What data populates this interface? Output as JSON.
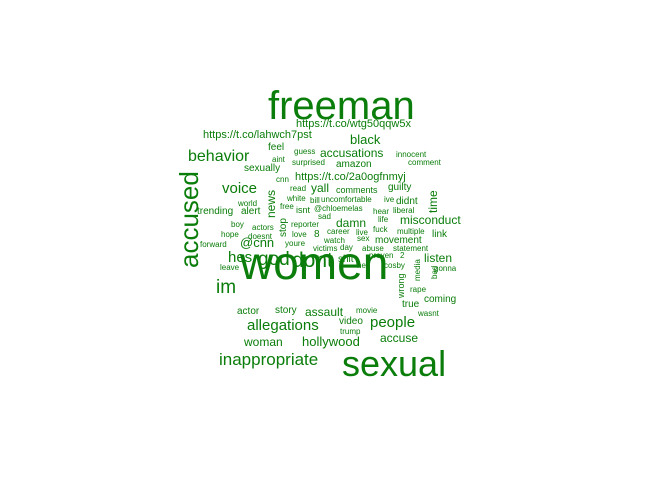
{
  "cloud": {
    "color": "#0a7d0a",
    "words": [
      {
        "text": "women"
      },
      {
        "text": "freeman"
      },
      {
        "text": "sexual"
      },
      {
        "text": "accused"
      },
      {
        "text": "dont"
      },
      {
        "text": "god"
      },
      {
        "text": "im"
      },
      {
        "text": "hes"
      },
      {
        "text": "behavior"
      },
      {
        "text": "inappropriate"
      },
      {
        "text": "allegations"
      },
      {
        "text": "people"
      },
      {
        "text": "voice"
      },
      {
        "text": "black"
      },
      {
        "text": "accusations"
      },
      {
        "text": "@cnn"
      },
      {
        "text": "hollywood"
      },
      {
        "text": "woman"
      },
      {
        "text": "accuse"
      },
      {
        "text": "assault"
      },
      {
        "text": "listen"
      },
      {
        "text": "misconduct"
      },
      {
        "text": "yall"
      },
      {
        "text": "damn"
      },
      {
        "text": "news"
      },
      {
        "text": "time"
      },
      {
        "text": "https://t.co/lahwch7pst"
      },
      {
        "text": "https://t.co/wtg50qqw5x"
      },
      {
        "text": "https://t.co/2a0ogfnmyj"
      },
      {
        "text": "feel"
      },
      {
        "text": "sexually"
      },
      {
        "text": "amazon"
      },
      {
        "text": "story"
      },
      {
        "text": "video"
      },
      {
        "text": "actor"
      },
      {
        "text": "true"
      },
      {
        "text": "coming"
      },
      {
        "text": "link"
      },
      {
        "text": "didnt"
      },
      {
        "text": "stop"
      },
      {
        "text": "guilty"
      },
      {
        "text": "movement"
      },
      {
        "text": "shit"
      },
      {
        "text": "trending"
      },
      {
        "text": "alert"
      },
      {
        "text": "8"
      },
      {
        "text": "comments"
      },
      {
        "text": "wrong"
      },
      {
        "text": "isnt"
      },
      {
        "text": "aint"
      },
      {
        "text": "surprised"
      },
      {
        "text": "guess"
      },
      {
        "text": "innocent"
      },
      {
        "text": "comment"
      },
      {
        "text": "cnn"
      },
      {
        "text": "read"
      },
      {
        "text": "white"
      },
      {
        "text": "bill"
      },
      {
        "text": "uncomfortable"
      },
      {
        "text": "ive"
      },
      {
        "text": "world"
      },
      {
        "text": "free"
      },
      {
        "text": "@chloemelas"
      },
      {
        "text": "hear"
      },
      {
        "text": "liberal"
      },
      {
        "text": "sad"
      },
      {
        "text": "life"
      },
      {
        "text": "boy"
      },
      {
        "text": "actors"
      },
      {
        "text": "reporter"
      },
      {
        "text": "career"
      },
      {
        "text": "live"
      },
      {
        "text": "fuck"
      },
      {
        "text": "multiple"
      },
      {
        "text": "hope"
      },
      {
        "text": "doesnt"
      },
      {
        "text": "love"
      },
      {
        "text": "watch"
      },
      {
        "text": "sex"
      },
      {
        "text": "forward"
      },
      {
        "text": "youre"
      },
      {
        "text": "victims"
      },
      {
        "text": "day"
      },
      {
        "text": "abuse"
      },
      {
        "text": "statement"
      },
      {
        "text": "leave"
      },
      {
        "text": "proven"
      },
      {
        "text": "2"
      },
      {
        "text": "hey"
      },
      {
        "text": "cosby"
      },
      {
        "text": "media"
      },
      {
        "text": "bad"
      },
      {
        "text": "gonna"
      },
      {
        "text": "rape"
      },
      {
        "text": "movie"
      },
      {
        "text": "wasnt"
      },
      {
        "text": "trump"
      }
    ]
  }
}
